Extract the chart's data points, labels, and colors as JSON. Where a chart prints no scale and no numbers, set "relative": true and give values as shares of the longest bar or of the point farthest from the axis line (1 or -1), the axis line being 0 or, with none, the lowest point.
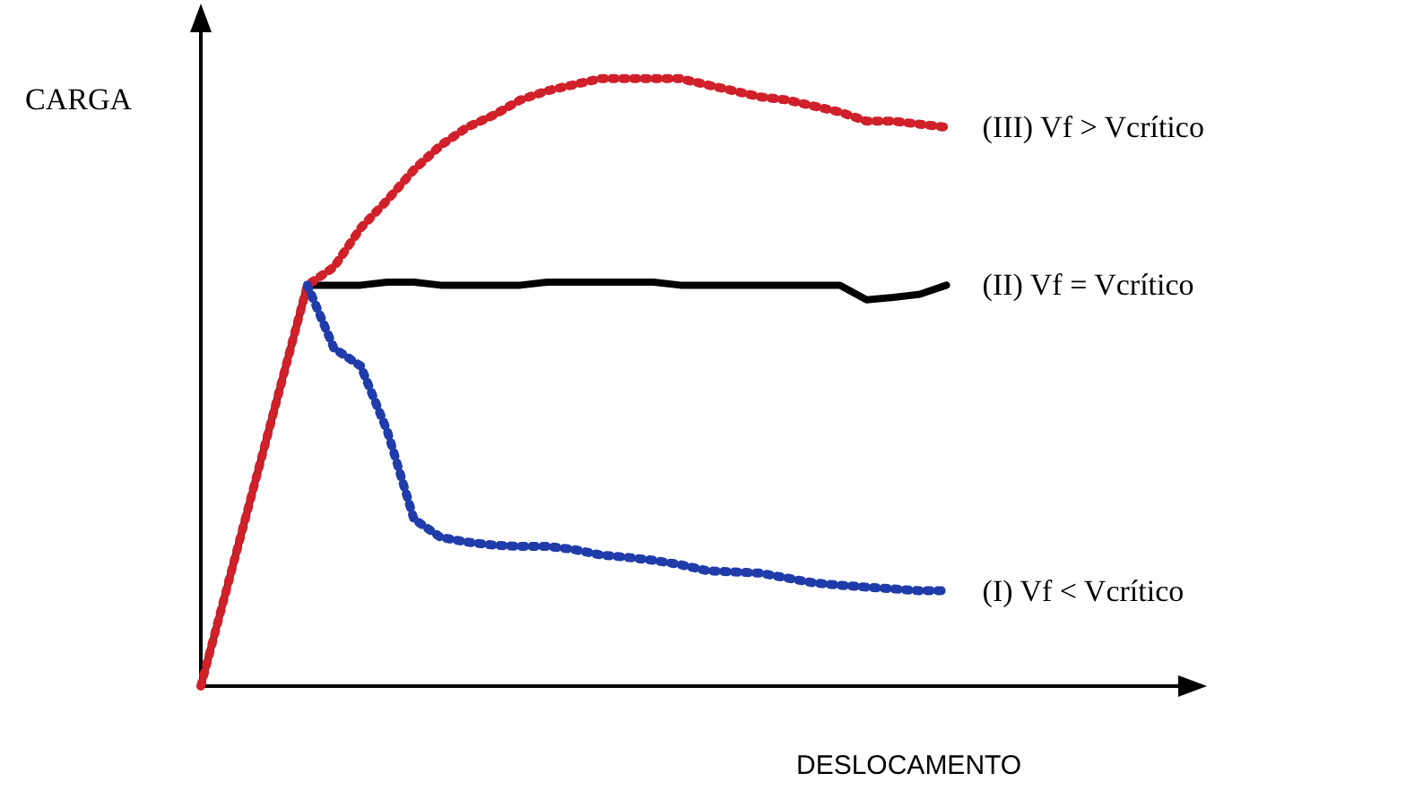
{
  "chart_data": {
    "type": "line",
    "relative": true,
    "xlabel": "DESLOCAMENTO",
    "ylabel": "CARGA",
    "legend": false,
    "grid": false,
    "marker": "none",
    "categories": [
      null,
      null,
      null,
      null,
      null,
      null,
      null,
      null,
      null,
      null,
      null,
      null,
      null,
      null,
      null,
      null,
      null,
      null,
      null,
      null,
      null,
      null,
      null,
      null,
      null,
      null,
      null,
      null,
      null
    ],
    "series": [
      {
        "name": "(III) Vf > Vcrítico",
        "color": "#d0202a",
        "line_style": "dotted",
        "values": [
          0,
          0.165,
          0.33,
          0.495,
          0.66,
          0.69,
          0.754,
          0.8,
          0.85,
          0.89,
          0.92,
          0.94,
          0.965,
          0.98,
          0.99,
          1,
          1,
          1,
          1,
          0.99,
          0.98,
          0.97,
          0.965,
          0.955,
          0.945,
          0.93,
          0.93,
          0.925,
          0.92
        ]
      },
      {
        "name": "(II) Vf = Vcrítico",
        "color": "#000000",
        "line_style": "solid",
        "values": [
          0,
          0.165,
          0.33,
          0.495,
          0.66,
          0.66,
          0.66,
          0.665,
          0.665,
          0.66,
          0.66,
          0.66,
          0.66,
          0.665,
          0.665,
          0.665,
          0.665,
          0.665,
          0.66,
          0.66,
          0.66,
          0.66,
          0.66,
          0.66,
          0.66,
          0.636,
          0.64,
          0.645,
          0.66
        ]
      },
      {
        "name": "(I) Vf < Vcrítico",
        "color": "#1f3caa",
        "line_style": "dotted",
        "values": [
          null,
          null,
          null,
          null,
          0.66,
          0.556,
          0.527,
          0.42,
          0.275,
          0.245,
          0.237,
          0.232,
          0.23,
          0.23,
          0.225,
          0.216,
          0.212,
          0.207,
          0.2,
          0.19,
          0.188,
          0.186,
          0.178,
          0.17,
          0.166,
          0.163,
          0.16,
          0.157,
          0.157
        ]
      }
    ]
  }
}
